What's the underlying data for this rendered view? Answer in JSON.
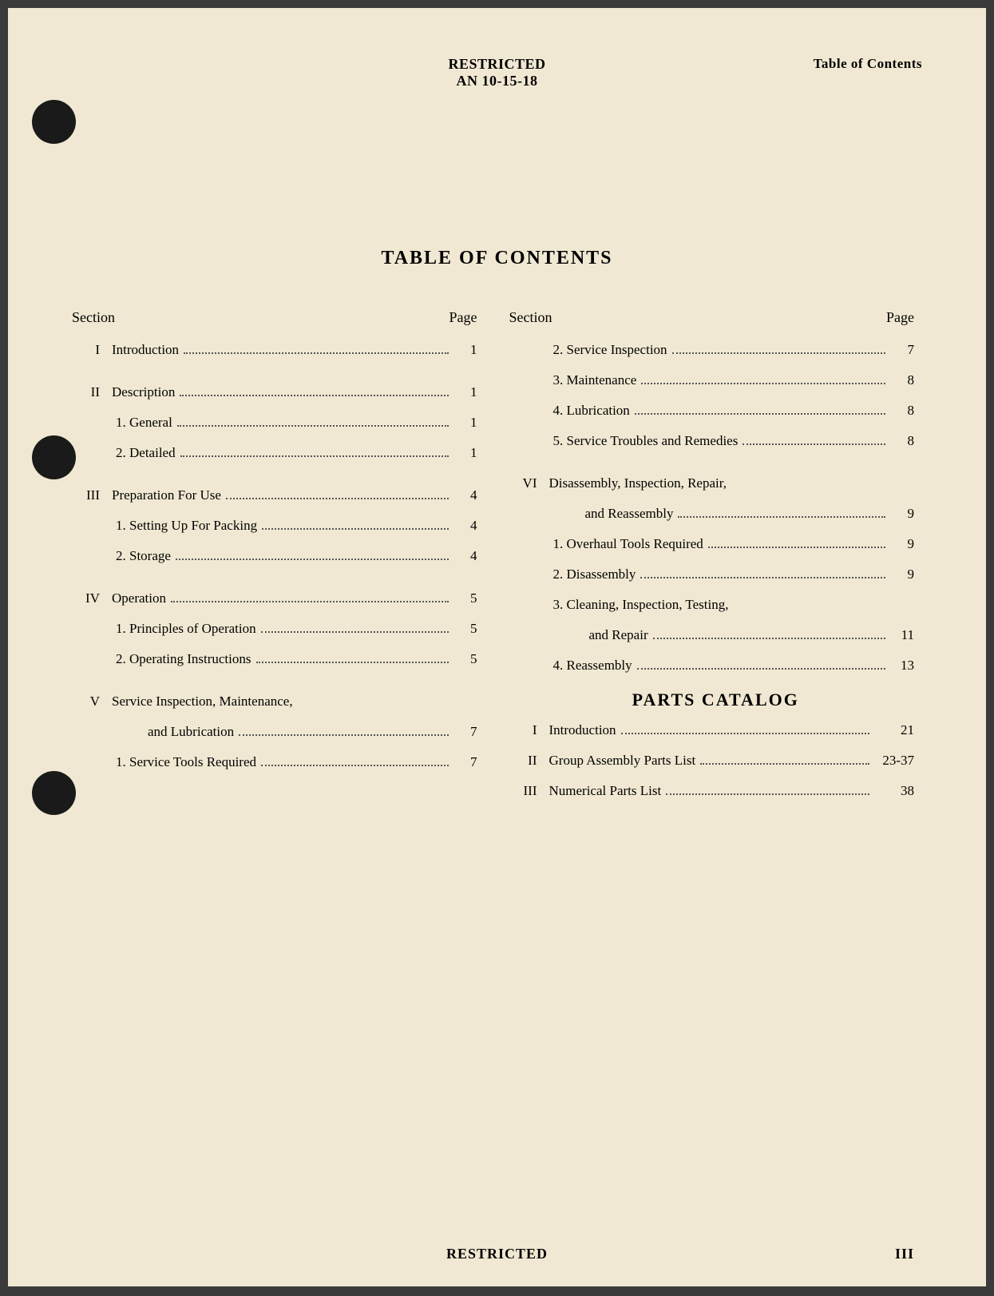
{
  "header": {
    "classification": "RESTRICTED",
    "document_number": "AN 10-15-18",
    "header_label": "Table of Contents"
  },
  "title": "TABLE OF CONTENTS",
  "column_headers": {
    "section": "Section",
    "page": "Page"
  },
  "left_column": [
    {
      "type": "main",
      "roman": "I",
      "text": "Introduction",
      "page": "1"
    },
    {
      "type": "gap"
    },
    {
      "type": "main",
      "roman": "II",
      "text": "Description",
      "page": "1"
    },
    {
      "type": "sub",
      "text": "1. General",
      "page": "1"
    },
    {
      "type": "sub",
      "text": "2. Detailed",
      "page": "1"
    },
    {
      "type": "gap"
    },
    {
      "type": "main",
      "roman": "III",
      "text": "Preparation For Use",
      "page": "4"
    },
    {
      "type": "sub",
      "text": "1. Setting Up For Packing",
      "page": "4"
    },
    {
      "type": "sub",
      "text": "2. Storage",
      "page": "4"
    },
    {
      "type": "gap"
    },
    {
      "type": "main",
      "roman": "IV",
      "text": "Operation",
      "page": "5"
    },
    {
      "type": "sub",
      "text": "1. Principles of Operation",
      "page": "5"
    },
    {
      "type": "sub",
      "text": "2. Operating Instructions",
      "page": "5"
    },
    {
      "type": "gap"
    },
    {
      "type": "main-multi",
      "roman": "V",
      "text": "Service Inspection, Maintenance,",
      "page": ""
    },
    {
      "type": "cont",
      "text": "and Lubrication",
      "page": "7"
    },
    {
      "type": "sub",
      "text": "1. Service Tools Required",
      "page": "7"
    }
  ],
  "right_column": [
    {
      "type": "sub",
      "text": "2. Service Inspection",
      "page": "7"
    },
    {
      "type": "sub",
      "text": "3. Maintenance",
      "page": "8"
    },
    {
      "type": "sub",
      "text": "4. Lubrication",
      "page": "8"
    },
    {
      "type": "sub",
      "text": "5. Service Troubles and Remedies",
      "page": "8"
    },
    {
      "type": "gap"
    },
    {
      "type": "main-multi",
      "roman": "VI",
      "text": "Disassembly, Inspection, Repair,",
      "page": ""
    },
    {
      "type": "cont",
      "text": "and Reassembly",
      "page": "9"
    },
    {
      "type": "sub",
      "text": "1. Overhaul Tools Required",
      "page": "9"
    },
    {
      "type": "sub",
      "text": "2. Disassembly",
      "page": "9"
    },
    {
      "type": "sub-multi",
      "text": "3. Cleaning, Inspection, Testing,",
      "page": ""
    },
    {
      "type": "cont2",
      "text": "and Repair",
      "page": "11"
    },
    {
      "type": "sub",
      "text": "4. Reassembly",
      "page": "13"
    }
  ],
  "parts_catalog": {
    "title": "PARTS CATALOG",
    "entries": [
      {
        "roman": "I",
        "text": "Introduction",
        "page": "21"
      },
      {
        "roman": "II",
        "text": "Group Assembly Parts List",
        "page": "23-37"
      },
      {
        "roman": "III",
        "text": "Numerical Parts List",
        "page": "38"
      }
    ]
  },
  "footer": {
    "classification": "RESTRICTED",
    "page_number": "III"
  }
}
